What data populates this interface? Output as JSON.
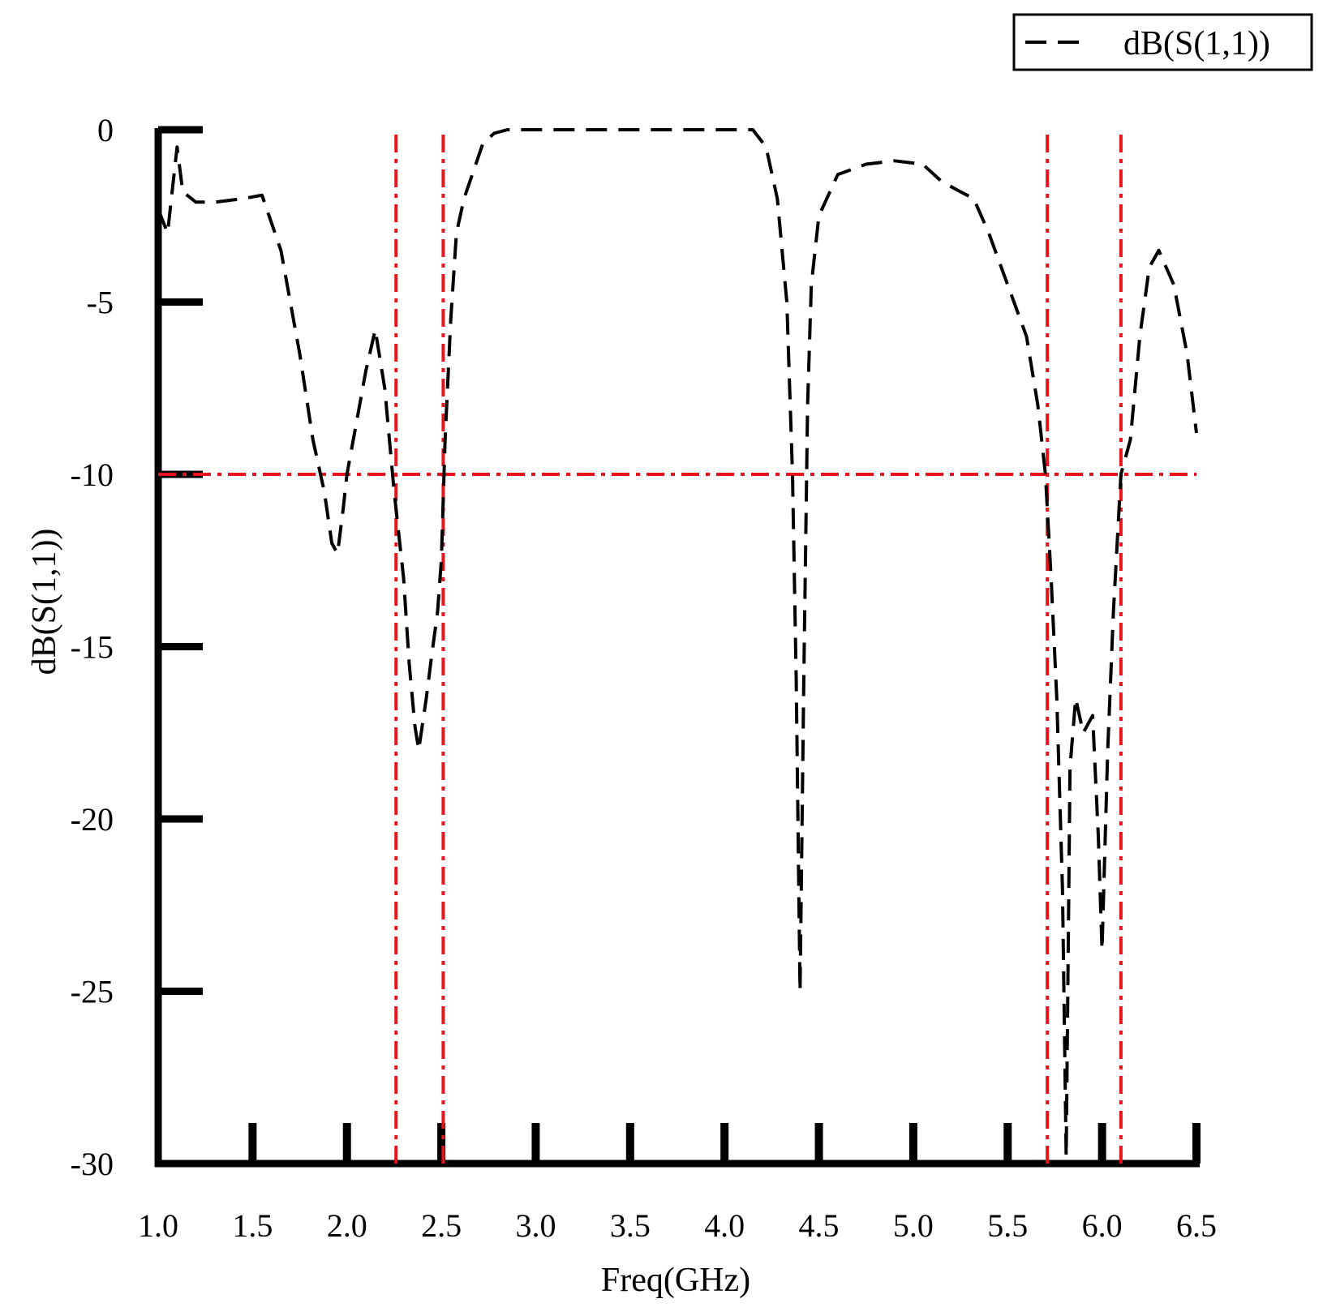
{
  "chart_data": {
    "type": "line",
    "title": "",
    "xlabel": "Freq(GHz)",
    "ylabel": "dB(S(1,1))",
    "xlim": [
      1.0,
      6.5
    ],
    "ylim": [
      -30,
      0
    ],
    "x_ticks": [
      "1.0",
      "1.5",
      "2.0",
      "2.5",
      "3.0",
      "3.5",
      "4.0",
      "4.5",
      "5.0",
      "5.5",
      "6.0",
      "6.5"
    ],
    "y_ticks": [
      "0",
      "-5",
      "-10",
      "-15",
      "-20",
      "-25",
      "-30"
    ],
    "grid": false,
    "legend": {
      "position": "top-right",
      "entries": [
        "dB(S(1,1))"
      ]
    },
    "series": [
      {
        "name": "dB(S(1,1))",
        "style": "dashed",
        "color": "#000000",
        "x": [
          1.0,
          1.05,
          1.08,
          1.1,
          1.13,
          1.2,
          1.3,
          1.45,
          1.55,
          1.65,
          1.75,
          1.82,
          1.88,
          1.92,
          1.95,
          1.98,
          2.0,
          2.05,
          2.1,
          2.15,
          2.2,
          2.25,
          2.3,
          2.33,
          2.36,
          2.38,
          2.42,
          2.45,
          2.48,
          2.5,
          2.52,
          2.55,
          2.58,
          2.62,
          2.67,
          2.72,
          2.78,
          2.85,
          3.0,
          3.5,
          4.0,
          4.15,
          4.22,
          4.28,
          4.33,
          4.36,
          4.38,
          4.4,
          4.42,
          4.44,
          4.46,
          4.5,
          4.6,
          4.75,
          4.9,
          5.05,
          5.15,
          5.25,
          5.32,
          5.4,
          5.5,
          5.6,
          5.66,
          5.7,
          5.73,
          5.76,
          5.79,
          5.81,
          5.83,
          5.86,
          5.9,
          5.95,
          5.98,
          6.0,
          6.03,
          6.06,
          6.1,
          6.15,
          6.2,
          6.25,
          6.3,
          6.38,
          6.45,
          6.5
        ],
        "values": [
          -2.3,
          -3.0,
          -1.5,
          -0.5,
          -1.8,
          -2.1,
          -2.1,
          -2.0,
          -1.9,
          -3.5,
          -6.5,
          -9.0,
          -10.5,
          -12.0,
          -12.3,
          -11.0,
          -10.0,
          -8.5,
          -7.0,
          -5.8,
          -7.5,
          -10.5,
          -13.0,
          -15.5,
          -17.3,
          -18.0,
          -16.5,
          -15.2,
          -14.0,
          -12.5,
          -9.0,
          -5.5,
          -3.0,
          -2.0,
          -1.2,
          -0.4,
          -0.1,
          0.0,
          0.0,
          0.0,
          0.0,
          0.0,
          -0.5,
          -2.0,
          -5.0,
          -10.0,
          -16.0,
          -25.0,
          -16.0,
          -8.0,
          -4.5,
          -2.5,
          -1.3,
          -1.0,
          -0.9,
          -1.0,
          -1.5,
          -1.8,
          -2.0,
          -3.0,
          -4.5,
          -6.0,
          -8.0,
          -10.0,
          -13.0,
          -16.5,
          -22.0,
          -29.8,
          -18.5,
          -16.5,
          -17.5,
          -17.0,
          -20.5,
          -23.8,
          -18.0,
          -14.0,
          -10.0,
          -9.0,
          -6.0,
          -4.0,
          -3.5,
          -4.5,
          -6.5,
          -8.8
        ]
      }
    ],
    "reference_lines": {
      "color": "#e8141b",
      "style": "dash-dot",
      "horizontal_y": [
        -10
      ],
      "vertical_x": [
        2.26,
        2.51,
        5.71,
        6.1
      ]
    }
  }
}
